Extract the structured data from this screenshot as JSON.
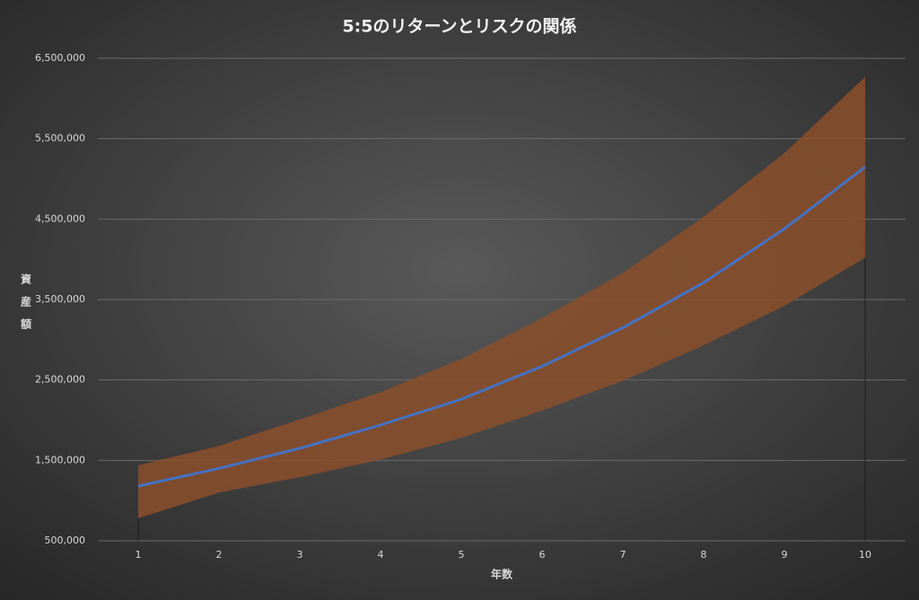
{
  "chart_data": {
    "type": "line",
    "title": "5:5のリターンとリスクの関係",
    "y_label": [
      "資",
      "産",
      "額"
    ],
    "x_label": "年数",
    "categories": [
      "1",
      "2",
      "3",
      "4",
      "5",
      "6",
      "7",
      "8",
      "9",
      "10"
    ],
    "series": [
      {
        "color": "#4472c4",
        "values": [
          1180000,
          1400000,
          1650000,
          1940000,
          2260000,
          2670000,
          3150000,
          3710000,
          4380000,
          5150000
        ]
      }
    ],
    "band": {
      "color": "#8b4f2b",
      "upper": [
        1440000,
        1680000,
        2010000,
        2350000,
        2760000,
        3270000,
        3830000,
        4530000,
        5320000,
        6270000
      ],
      "lower": [
        780000,
        1100000,
        1290000,
        1510000,
        1780000,
        2120000,
        2490000,
        2930000,
        3420000,
        4020000
      ]
    },
    "ylim": [
      500000,
      6500000
    ],
    "yticks": [
      {
        "value": 500000,
        "label": "500,000"
      },
      {
        "value": 1500000,
        "label": "1,500,000"
      },
      {
        "value": 2500000,
        "label": "2,500,000"
      },
      {
        "value": 3500000,
        "label": "3,500,000"
      },
      {
        "value": 4500000,
        "label": "4,500,000"
      },
      {
        "value": 5500000,
        "label": "5,500,000"
      },
      {
        "value": 6500000,
        "label": "6,500,000"
      }
    ],
    "grid": true
  }
}
